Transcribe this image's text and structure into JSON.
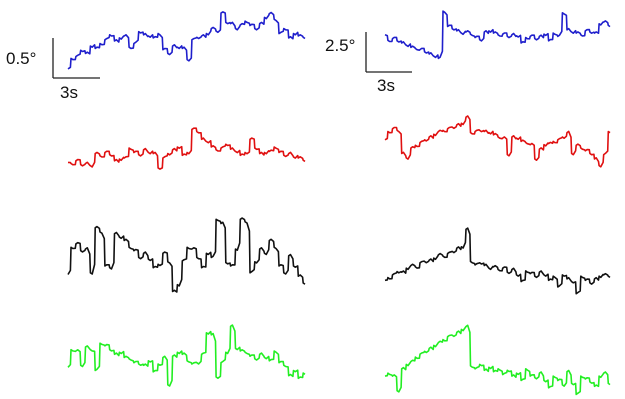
{
  "scale_bars": {
    "left": {
      "vertical_label": "0.5°",
      "horizontal_label": "3s"
    },
    "right": {
      "vertical_label": "2.5°",
      "horizontal_label": "3s"
    }
  },
  "chart_data": {
    "type": "line",
    "title": "",
    "grid": false,
    "legend": "none",
    "panels": [
      {
        "column": "left",
        "x_unit": "s",
        "y_unit": "°",
        "scale_bar": {
          "x": 3,
          "y": 0.5
        },
        "series": [
          {
            "color": "#1f1fcc",
            "trace": [
              0.05,
              0.22,
              0.25,
              0.35,
              0.3,
              0.42,
              0.38,
              0.46,
              0.52,
              0.6,
              0.5,
              0.55,
              0.58,
              0.4,
              0.46,
              0.65,
              0.6,
              0.58,
              0.55,
              0.62,
              0.36,
              0.3,
              0.42,
              0.4,
              0.38,
              0.2,
              0.52,
              0.56,
              0.58,
              0.62,
              0.7,
              0.66,
              0.95,
              0.8,
              0.78,
              0.7,
              0.76,
              0.82,
              0.75,
              0.7,
              0.78,
              0.88,
              0.94,
              0.85,
              0.62,
              0.7,
              0.55,
              0.62,
              0.58,
              0.56
            ]
          },
          {
            "color": "#e01010",
            "trace": [
              0.32,
              0.3,
              0.35,
              0.28,
              0.3,
              0.26,
              0.48,
              0.44,
              0.5,
              0.46,
              0.35,
              0.38,
              0.4,
              0.58,
              0.5,
              0.46,
              0.55,
              0.5,
              0.48,
              0.22,
              0.4,
              0.48,
              0.55,
              0.6,
              0.45,
              0.5,
              0.92,
              0.88,
              0.74,
              0.7,
              0.6,
              0.55,
              0.58,
              0.65,
              0.56,
              0.52,
              0.45,
              0.5,
              0.74,
              0.58,
              0.48,
              0.5,
              0.52,
              0.6,
              0.5,
              0.45,
              0.48,
              0.42,
              0.4,
              0.36
            ]
          },
          {
            "color": "#111111",
            "trace": [
              0.3,
              0.62,
              0.66,
              0.58,
              0.6,
              0.32,
              0.85,
              0.8,
              0.4,
              0.38,
              0.78,
              0.74,
              0.7,
              0.62,
              0.58,
              0.5,
              0.55,
              0.48,
              0.38,
              0.42,
              0.55,
              0.45,
              0.1,
              0.18,
              0.46,
              0.62,
              0.6,
              0.5,
              0.38,
              0.55,
              0.5,
              0.95,
              0.9,
              0.44,
              0.4,
              0.6,
              0.95,
              0.92,
              0.32,
              0.45,
              0.6,
              0.55,
              0.7,
              0.62,
              0.4,
              0.32,
              0.52,
              0.4,
              0.28,
              0.2
            ]
          },
          {
            "color": "#22ee22",
            "trace": [
              0.35,
              0.62,
              0.6,
              0.38,
              0.66,
              0.62,
              0.3,
              0.72,
              0.68,
              0.62,
              0.55,
              0.58,
              0.5,
              0.48,
              0.42,
              0.4,
              0.38,
              0.45,
              0.28,
              0.4,
              0.5,
              0.08,
              0.52,
              0.58,
              0.55,
              0.45,
              0.4,
              0.42,
              0.55,
              0.88,
              0.85,
              0.2,
              0.42,
              0.58,
              0.98,
              0.64,
              0.6,
              0.58,
              0.52,
              0.48,
              0.55,
              0.5,
              0.45,
              0.6,
              0.42,
              0.38,
              0.22,
              0.3,
              0.18,
              0.26
            ]
          }
        ]
      },
      {
        "column": "right",
        "x_unit": "s",
        "y_unit": "°",
        "scale_bar": {
          "x": 3,
          "y": 2.5
        },
        "series": [
          {
            "color": "#1f1fcc",
            "trace": [
              0.55,
              0.45,
              0.48,
              0.44,
              0.4,
              0.36,
              0.32,
              0.3,
              0.28,
              0.24,
              0.2,
              0.16,
              0.12,
              0.98,
              0.7,
              0.66,
              0.62,
              0.58,
              0.6,
              0.56,
              0.5,
              0.46,
              0.6,
              0.62,
              0.58,
              0.55,
              0.56,
              0.52,
              0.55,
              0.53,
              0.4,
              0.5,
              0.52,
              0.48,
              0.52,
              0.56,
              0.44,
              0.58,
              0.52,
              0.95,
              0.64,
              0.6,
              0.58,
              0.55,
              0.62,
              0.6,
              0.58,
              0.75,
              0.78,
              0.72
            ]
          },
          {
            "color": "#e01010",
            "trace": [
              0.55,
              0.7,
              0.75,
              0.72,
              0.3,
              0.22,
              0.4,
              0.45,
              0.5,
              0.55,
              0.6,
              0.65,
              0.7,
              0.72,
              0.75,
              0.78,
              0.82,
              0.85,
              0.96,
              0.68,
              0.7,
              0.72,
              0.7,
              0.68,
              0.64,
              0.6,
              0.58,
              0.28,
              0.6,
              0.58,
              0.52,
              0.5,
              0.46,
              0.2,
              0.38,
              0.46,
              0.48,
              0.52,
              0.55,
              0.6,
              0.68,
              0.3,
              0.45,
              0.4,
              0.35,
              0.3,
              0.2,
              0.08,
              0.28,
              0.7
            ]
          },
          {
            "color": "#111111",
            "trace": [
              0.22,
              0.26,
              0.3,
              0.35,
              0.34,
              0.4,
              0.44,
              0.42,
              0.48,
              0.5,
              0.52,
              0.55,
              0.6,
              0.58,
              0.62,
              0.65,
              0.7,
              0.72,
              0.98,
              0.5,
              0.45,
              0.48,
              0.44,
              0.4,
              0.42,
              0.38,
              0.4,
              0.34,
              0.38,
              0.3,
              0.2,
              0.36,
              0.32,
              0.28,
              0.34,
              0.3,
              0.22,
              0.28,
              0.12,
              0.3,
              0.24,
              0.2,
              0.02,
              0.28,
              0.22,
              0.18,
              0.24,
              0.28,
              0.3,
              0.28
            ]
          },
          {
            "color": "#22ee22",
            "trace": [
              0.3,
              0.34,
              0.3,
              0.1,
              0.4,
              0.46,
              0.5,
              0.56,
              0.6,
              0.64,
              0.68,
              0.72,
              0.76,
              0.8,
              0.84,
              0.86,
              0.9,
              0.94,
              0.98,
              0.44,
              0.4,
              0.46,
              0.38,
              0.42,
              0.36,
              0.4,
              0.32,
              0.38,
              0.3,
              0.34,
              0.24,
              0.4,
              0.3,
              0.28,
              0.34,
              0.24,
              0.14,
              0.3,
              0.24,
              0.18,
              0.36,
              0.2,
              0.05,
              0.3,
              0.26,
              0.22,
              0.16,
              0.3,
              0.34,
              0.2
            ]
          }
        ]
      }
    ]
  }
}
